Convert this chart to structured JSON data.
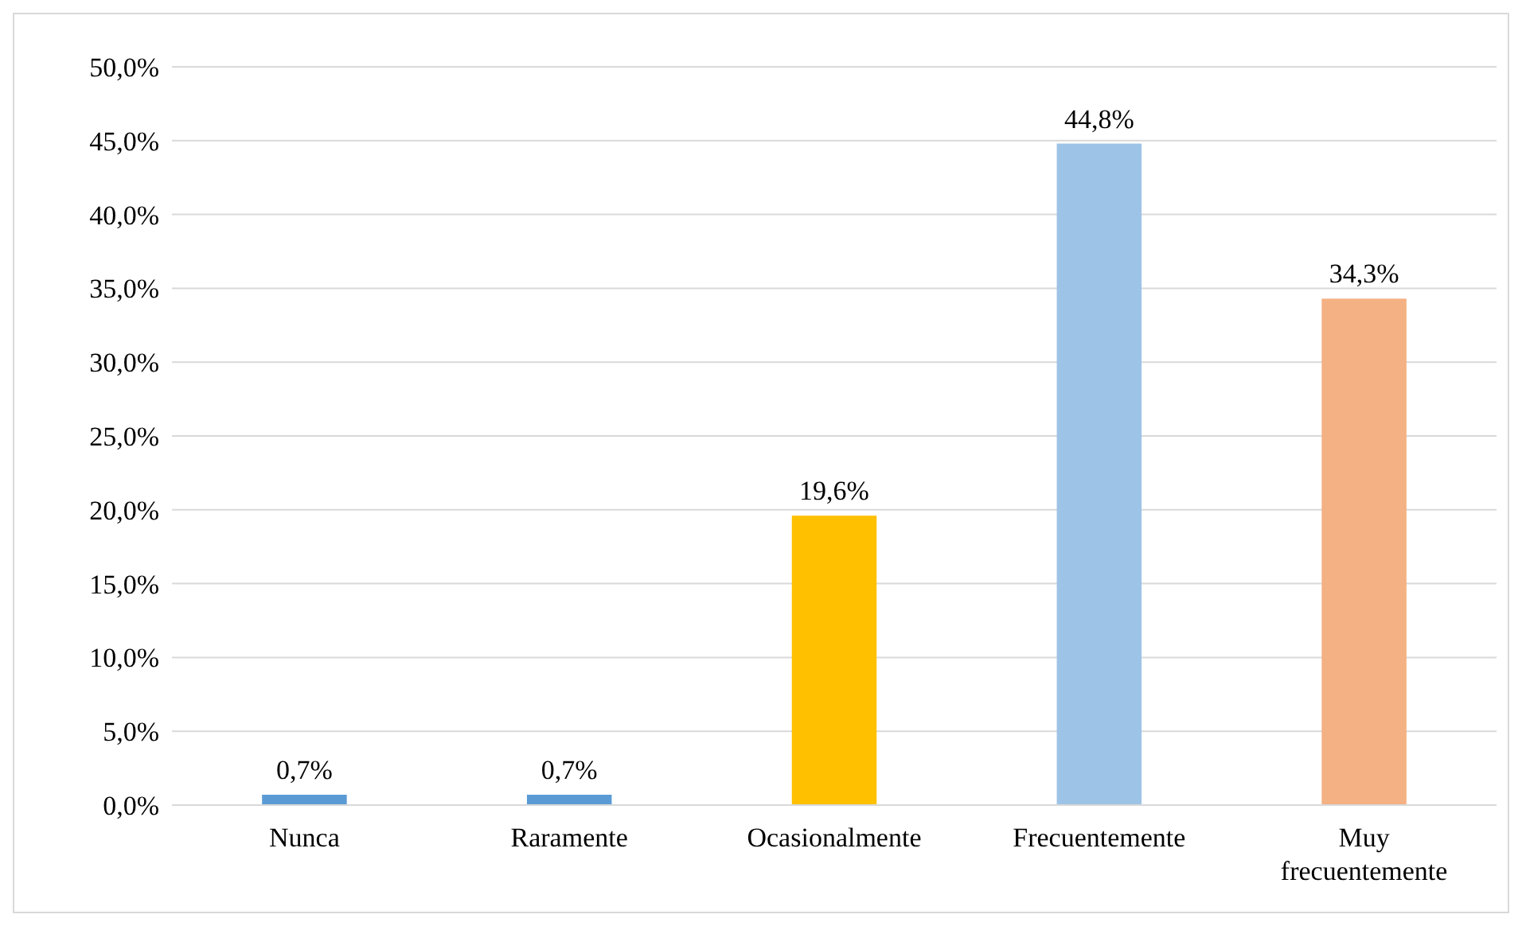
{
  "chart_data": {
    "type": "bar",
    "categories": [
      "Nunca",
      "Raramente",
      "Ocasionalmente",
      "Frecuentemente",
      "Muy frecuentemente"
    ],
    "values": [
      0.7,
      0.7,
      19.6,
      44.8,
      34.3
    ],
    "colors": [
      "#5b9bd5",
      "#5b9bd5",
      "#ffc000",
      "#9dc3e6",
      "#f4b183"
    ],
    "value_labels": [
      "0,7%",
      "0,7%",
      "19,6%",
      "44,8%",
      "34,3%"
    ],
    "ylim": [
      0,
      50
    ],
    "yticks": [
      {
        "value": 0,
        "label": "0,0%"
      },
      {
        "value": 5,
        "label": "5,0%"
      },
      {
        "value": 10,
        "label": "10,0%"
      },
      {
        "value": 15,
        "label": "15,0%"
      },
      {
        "value": 20,
        "label": "20,0%"
      },
      {
        "value": 25,
        "label": "25,0%"
      },
      {
        "value": 30,
        "label": "30,0%"
      },
      {
        "value": 35,
        "label": "35,0%"
      },
      {
        "value": 40,
        "label": "40,0%"
      },
      {
        "value": 45,
        "label": "45,0%"
      },
      {
        "value": 50,
        "label": "50,0%"
      }
    ],
    "grid": "y"
  }
}
